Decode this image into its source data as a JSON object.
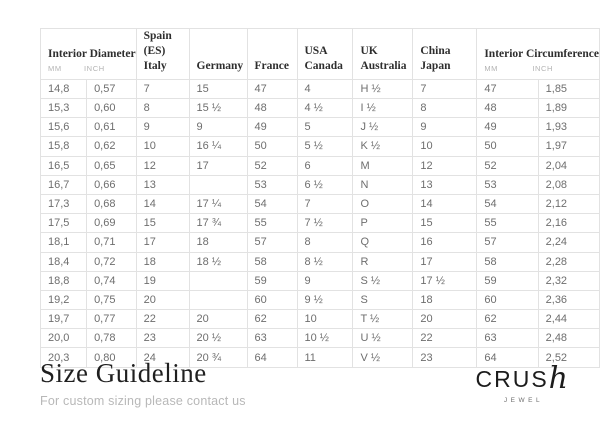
{
  "colors": {
    "border": "#e2e2e2",
    "data_text": "#6e6e6e",
    "header_text": "#2e2e2e",
    "muted_label": "#b3b3b3"
  },
  "table": {
    "header_groups": [
      {
        "title": "Interior Diameter",
        "subs": [
          "MM",
          "INCH"
        ]
      },
      {
        "title": "Interior Circumference",
        "subs": [
          "MM",
          "INCH"
        ]
      }
    ],
    "country_headers": [
      "Spain (ES)\nItaly",
      "Germany",
      "France",
      "USA\nCanada",
      "UK\nAustralia",
      "China\nJapan"
    ],
    "rows": [
      [
        "14,8",
        "0,57",
        "7",
        "15",
        "47",
        "4",
        "H ½",
        "7",
        "47",
        "1,85"
      ],
      [
        "15,3",
        "0,60",
        "8",
        "15 ½",
        "48",
        "4 ½",
        "I ½",
        "8",
        "48",
        "1,89"
      ],
      [
        "15,6",
        "0,61",
        "9",
        "9",
        "49",
        "5",
        "J ½",
        "9",
        "49",
        "1,93"
      ],
      [
        "15,8",
        "0,62",
        "10",
        "16 ¼",
        "50",
        "5 ½",
        "K ½",
        "10",
        "50",
        "1,97"
      ],
      [
        "16,5",
        "0,65",
        "12",
        "17",
        "52",
        "6",
        "M",
        "12",
        "52",
        "2,04"
      ],
      [
        "16,7",
        "0,66",
        "13",
        "",
        "53",
        "6 ½",
        "N",
        "13",
        "53",
        "2,08"
      ],
      [
        "17,3",
        "0,68",
        "14",
        "17 ¼",
        "54",
        "7",
        "O",
        "14",
        "54",
        "2,12"
      ],
      [
        "17,5",
        "0,69",
        "15",
        "17 ¾",
        "55",
        "7 ½",
        "P",
        "15",
        "55",
        "2,16"
      ],
      [
        "18,1",
        "0,71",
        "17",
        "18",
        "57",
        "8",
        "Q",
        "16",
        "57",
        "2,24"
      ],
      [
        "18,4",
        "0,72",
        "18",
        "18 ½",
        "58",
        "8 ½",
        "R",
        "17",
        "58",
        "2,28"
      ],
      [
        "18,8",
        "0,74",
        "19",
        "",
        "59",
        "9",
        "S ½",
        "17 ½",
        "59",
        "2,32"
      ],
      [
        "19,2",
        "0,75",
        "20",
        "",
        "60",
        "9 ½",
        "S",
        "18",
        "60",
        "2,36"
      ],
      [
        "19,7",
        "0,77",
        "22",
        "20",
        "62",
        "10",
        "T ½",
        "20",
        "62",
        "2,44"
      ],
      [
        "20,0",
        "0,78",
        "23",
        "20 ½",
        "63",
        "10 ½",
        "U ½",
        "22",
        "63",
        "2,48"
      ],
      [
        "20,3",
        "0,80",
        "24",
        "20 ¾",
        "64",
        "11",
        "V ½",
        "23",
        "64",
        "2,52"
      ]
    ]
  },
  "footer": {
    "title": "Size Guideline",
    "caption": "For custom sizing please contact us"
  },
  "logo": {
    "caps": "CRUS",
    "script_letter": "h",
    "subtext": "JEWEL"
  }
}
